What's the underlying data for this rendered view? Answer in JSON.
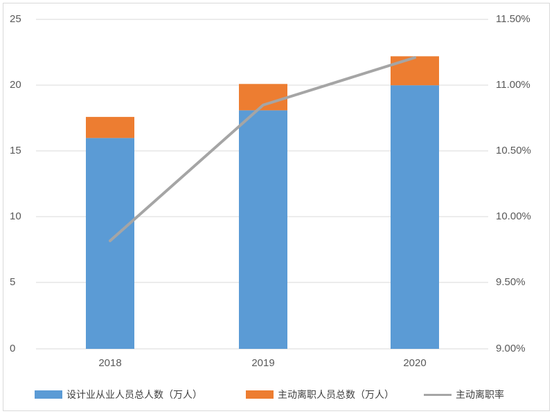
{
  "chart_data": {
    "type": "bar+line",
    "title": "",
    "categories": [
      "2018",
      "2019",
      "2020"
    ],
    "series": [
      {
        "name": "设计业从业人员总人数（万人）",
        "type": "stacked-bar",
        "axis": "left",
        "color": "#5B9BD5",
        "values": [
          16.0,
          18.1,
          20.0
        ]
      },
      {
        "name": "主动离职人员总数（万人）",
        "type": "stacked-bar",
        "axis": "left",
        "color": "#ED7D31",
        "values": [
          1.6,
          2.0,
          2.2
        ]
      },
      {
        "name": "主动离职率",
        "type": "line",
        "axis": "right",
        "color": "#A5A5A5",
        "values": [
          0.0982,
          0.1085,
          0.1121
        ]
      }
    ],
    "left_axis": {
      "min": 0,
      "max": 25,
      "ticks": [
        "0",
        "5",
        "10",
        "15",
        "20",
        "25"
      ]
    },
    "right_axis": {
      "min": 0.09,
      "max": 0.115,
      "ticks": [
        "9.00%",
        "9.50%",
        "10.00%",
        "10.50%",
        "11.00%",
        "11.50%"
      ]
    },
    "grid": true,
    "legend_position": "bottom",
    "xlabel": "",
    "ylabel": ""
  },
  "legend": {
    "item0": "设计业从业人员总人数（万人）",
    "item1": "主动离职人员总数（万人）",
    "item2": "主动离职率"
  },
  "axes": {
    "left": [
      "25",
      "20",
      "15",
      "10",
      "5",
      "0"
    ],
    "right": [
      "11.50%",
      "11.00%",
      "10.50%",
      "10.00%",
      "9.50%",
      "9.00%"
    ],
    "x": [
      "2018",
      "2019",
      "2020"
    ]
  }
}
